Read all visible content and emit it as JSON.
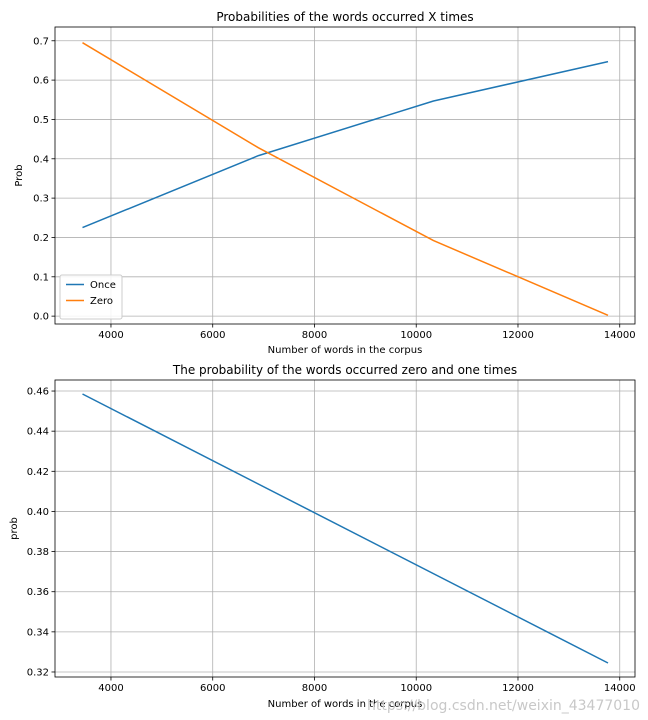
{
  "chart_data": [
    {
      "type": "line",
      "title": "Probabilities of the words occurred X times",
      "xlabel": "Number of words in the corpus",
      "ylabel": "Prob",
      "xlim": [
        2900,
        14300
      ],
      "ylim": [
        -0.02,
        0.735
      ],
      "xticks": [
        4000,
        6000,
        8000,
        10000,
        12000,
        14000
      ],
      "xtick_labels": [
        "4000",
        "6000",
        "8000",
        "10000",
        "12000",
        "14000"
      ],
      "yticks": [
        0.0,
        0.1,
        0.2,
        0.3,
        0.4,
        0.5,
        0.6,
        0.7
      ],
      "ytick_labels": [
        "0.0",
        "0.1",
        "0.2",
        "0.3",
        "0.4",
        "0.5",
        "0.6",
        "0.7"
      ],
      "grid": true,
      "legend": "lower-left",
      "series": [
        {
          "name": "Once",
          "color": "#1f77b4",
          "x": [
            3440,
            6900,
            10340,
            13770
          ],
          "y": [
            0.225,
            0.408,
            0.547,
            0.647
          ]
        },
        {
          "name": "Zero",
          "color": "#ff7f0e",
          "x": [
            3440,
            6900,
            10340,
            13770
          ],
          "y": [
            0.695,
            0.428,
            0.192,
            0.002
          ]
        }
      ]
    },
    {
      "type": "line",
      "title": "The probability of the words occurred zero and one times",
      "xlabel": "Number of words in the corpus",
      "ylabel": "prob",
      "xlim": [
        2900,
        14300
      ],
      "ylim": [
        0.3175,
        0.4655
      ],
      "xticks": [
        4000,
        6000,
        8000,
        10000,
        12000,
        14000
      ],
      "xtick_labels": [
        "4000",
        "6000",
        "8000",
        "10000",
        "12000",
        "14000"
      ],
      "yticks": [
        0.32,
        0.34,
        0.36,
        0.38,
        0.4,
        0.42,
        0.44,
        0.46
      ],
      "ytick_labels": [
        "0.32",
        "0.34",
        "0.36",
        "0.38",
        "0.40",
        "0.42",
        "0.44",
        "0.46"
      ],
      "grid": true,
      "series": [
        {
          "color": "#1f77b4",
          "x": [
            3440,
            13770
          ],
          "y": [
            0.4585,
            0.3245
          ]
        }
      ]
    }
  ],
  "watermark": "https://blog.csdn.net/weixin_43477010"
}
